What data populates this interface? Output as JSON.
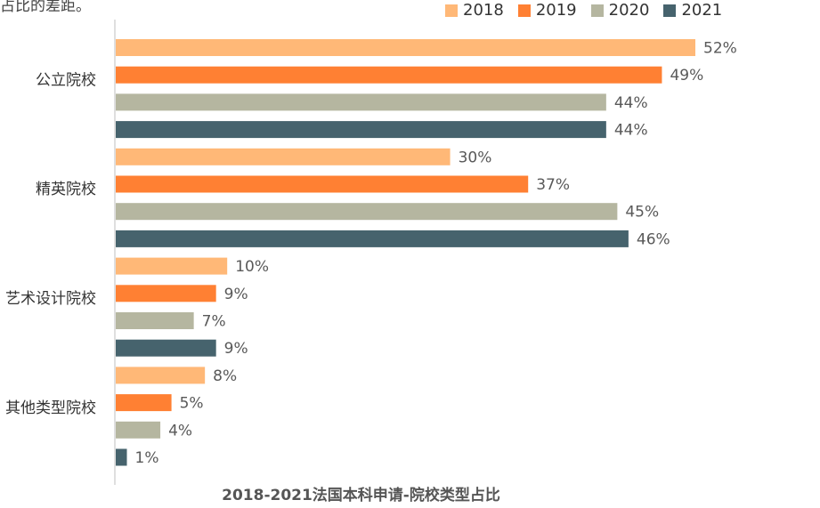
{
  "top_text": "占比的差距。",
  "chart_data": {
    "type": "bar",
    "orientation": "horizontal",
    "title": "2018-2021法国本科申请-院校类型占比",
    "categories": [
      "公立院校",
      "精英院校",
      "艺术设计院校",
      "其他类型院校"
    ],
    "series": [
      {
        "name": "2018",
        "color": "#FFB877",
        "values": [
          52,
          30,
          10,
          8
        ]
      },
      {
        "name": "2019",
        "color": "#FF8033",
        "values": [
          49,
          37,
          9,
          5
        ]
      },
      {
        "name": "2020",
        "color": "#B5B6A0",
        "values": [
          44,
          45,
          7,
          4
        ]
      },
      {
        "name": "2021",
        "color": "#46636D",
        "values": [
          44,
          46,
          9,
          1
        ]
      }
    ],
    "value_suffix": "%",
    "xlim": [
      0,
      52
    ],
    "grid": false,
    "legend_position": "top-right"
  }
}
